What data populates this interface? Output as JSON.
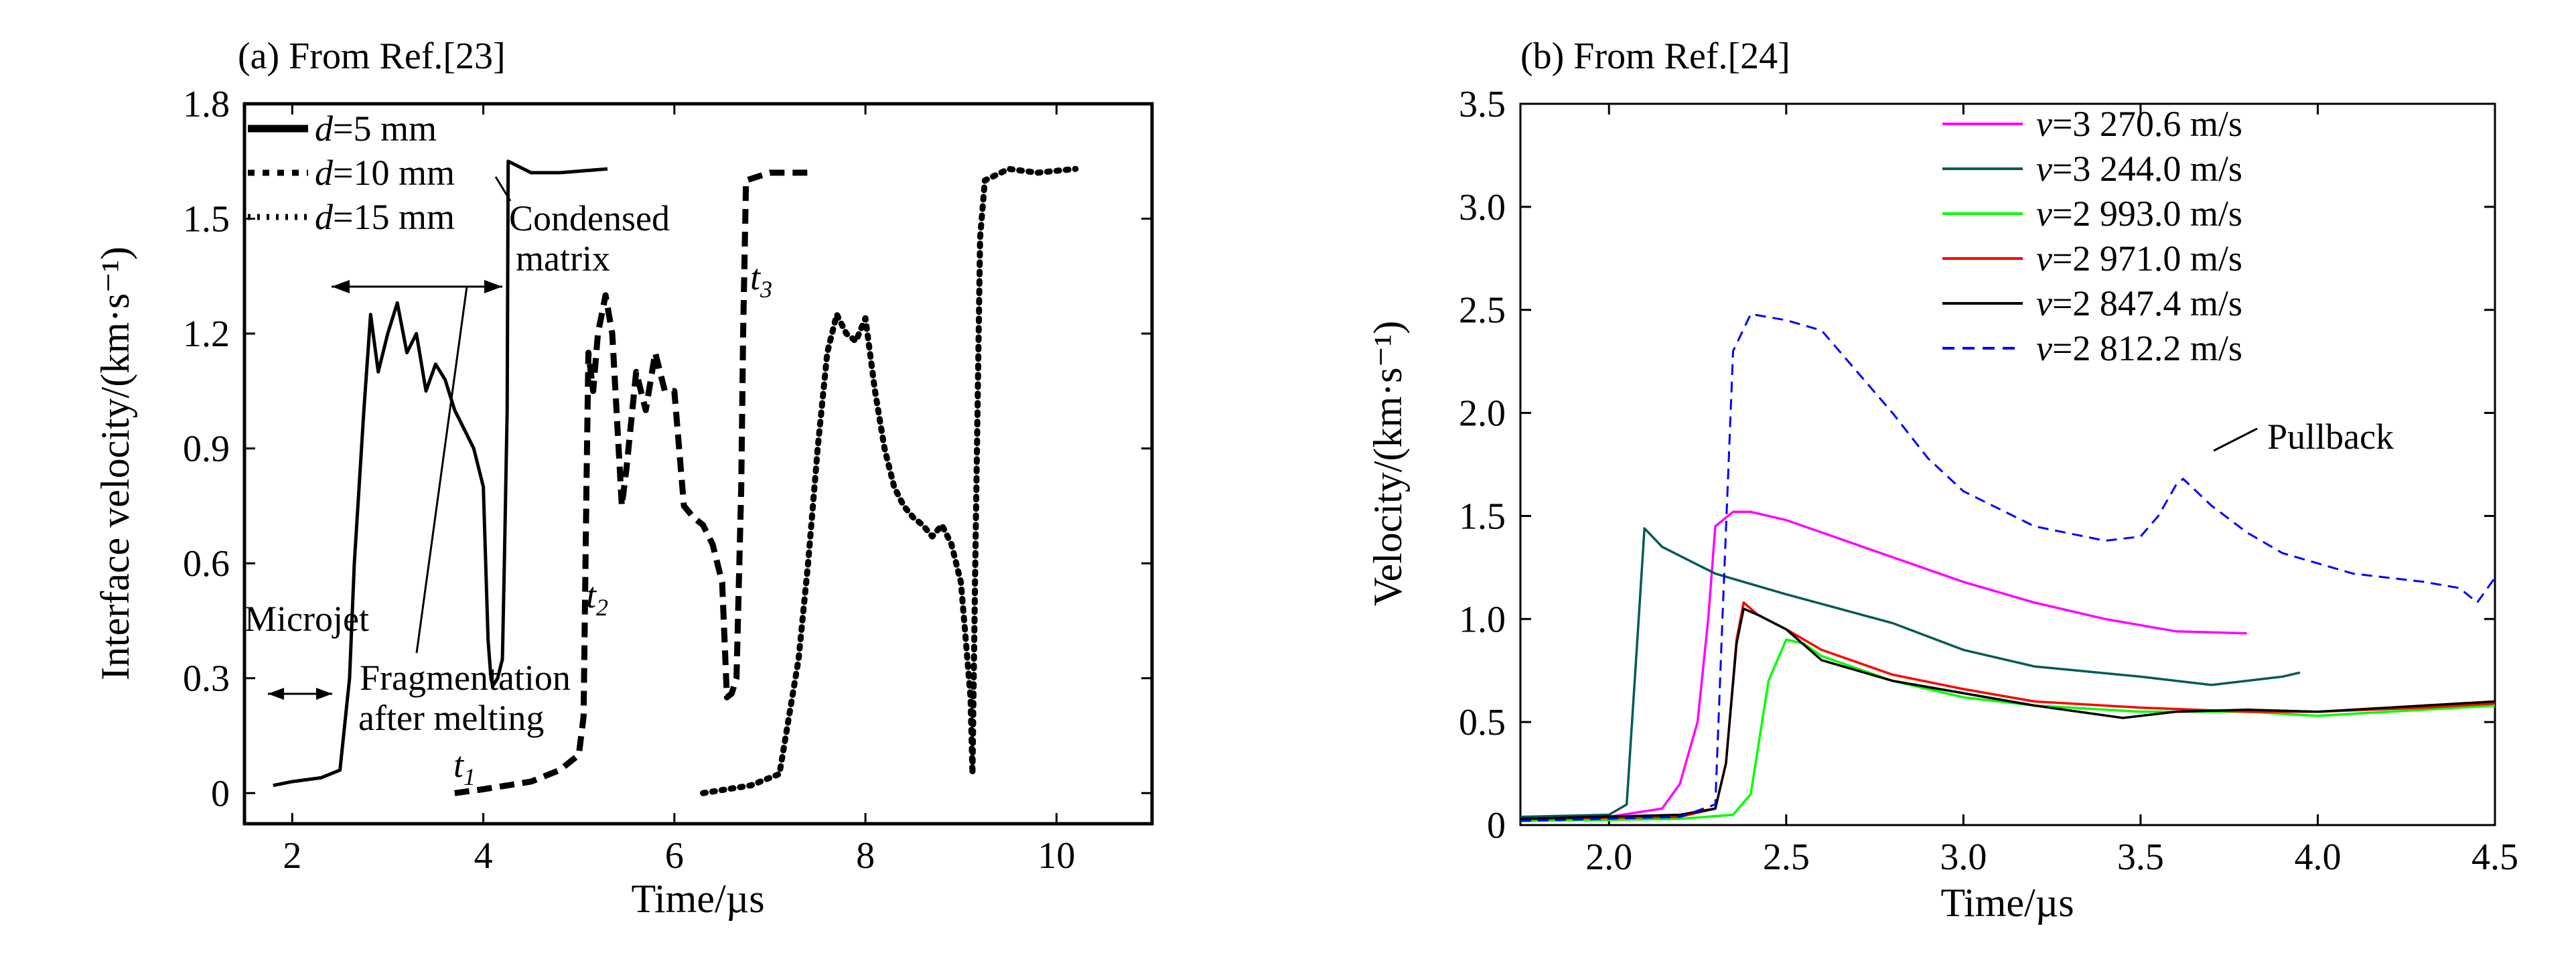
{
  "figure": {
    "panel_a": {
      "title": "(a) From Ref.[23]",
      "xlabel": "Time/µs",
      "ylabel": "Interface velocity/(km·s⁻¹)",
      "annotations": {
        "condensed_line1": "Condensed",
        "condensed_line2": "matrix",
        "microjet": "Microjet",
        "frag_line1": "Fragmentation",
        "frag_line2": "after melting",
        "t1": "t",
        "t1_sub": "1",
        "t2": "t",
        "t2_sub": "2",
        "t3": "t",
        "t3_sub": "3"
      }
    },
    "panel_b": {
      "title": "(b) From Ref.[24]",
      "xlabel": "Time/µs",
      "ylabel": "Velocity/(km·s⁻¹)",
      "annotations": {
        "pullback": "Pullback"
      }
    }
  },
  "chart_data": [
    {
      "type": "line",
      "title": "(a) From Ref.[23]",
      "xlabel": "Time/µs",
      "ylabel": "Interface velocity/(km·s⁻¹)",
      "xlim": [
        1.5,
        11.0
      ],
      "ylim": [
        -0.08,
        1.8
      ],
      "xticks": [
        2,
        4,
        6,
        8,
        10
      ],
      "xtick_labels": [
        "2",
        "4",
        "6",
        "8",
        "10"
      ],
      "yticks": [
        0,
        0.3,
        0.6,
        0.9,
        1.2,
        1.5,
        1.8
      ],
      "ytick_labels": [
        "0",
        "0.3",
        "0.6",
        "0.9",
        "1.2",
        "1.5",
        "1.8"
      ],
      "legend_placement": "top-left",
      "series": [
        {
          "legend_var": "d",
          "legend_rest": "=5 mm",
          "style": "solid",
          "color": "#000000",
          "x": [
            1.8,
            2.0,
            2.3,
            2.5,
            2.6,
            2.65,
            2.75,
            2.82,
            2.9,
            3.0,
            3.1,
            3.2,
            3.3,
            3.4,
            3.5,
            3.6,
            3.7,
            3.8,
            3.9,
            4.0,
            4.05,
            4.08,
            4.1,
            4.15,
            4.2,
            4.22,
            4.25,
            4.26,
            4.5,
            4.8,
            5.3
          ],
          "y": [
            0.02,
            0.03,
            0.04,
            0.06,
            0.3,
            0.6,
            1.0,
            1.25,
            1.1,
            1.2,
            1.28,
            1.15,
            1.2,
            1.05,
            1.12,
            1.08,
            1.0,
            0.95,
            0.9,
            0.8,
            0.4,
            0.3,
            0.28,
            0.3,
            0.35,
            0.6,
            1.0,
            1.65,
            1.62,
            1.62,
            1.63
          ]
        },
        {
          "legend_var": "d",
          "legend_rest": "=10 mm",
          "style": "dashed",
          "color": "#000000",
          "x": [
            3.7,
            4.0,
            4.5,
            4.8,
            5.0,
            5.05,
            5.08,
            5.1,
            5.15,
            5.2,
            5.28,
            5.35,
            5.45,
            5.5,
            5.6,
            5.7,
            5.8,
            5.9,
            6.0,
            6.1,
            6.2,
            6.3,
            6.4,
            6.5,
            6.55,
            6.6,
            6.65,
            6.7,
            6.72,
            6.75,
            7.0,
            7.4
          ],
          "y": [
            0.0,
            0.01,
            0.03,
            0.06,
            0.1,
            0.2,
            0.8,
            1.15,
            1.05,
            1.2,
            1.3,
            1.2,
            0.75,
            0.85,
            1.1,
            1.0,
            1.15,
            1.05,
            1.05,
            0.75,
            0.72,
            0.7,
            0.65,
            0.55,
            0.25,
            0.26,
            0.3,
            0.8,
            1.2,
            1.6,
            1.62,
            1.62
          ]
        },
        {
          "legend_var": "d",
          "legend_rest": "=15 mm",
          "style": "dotted",
          "color": "#000000",
          "x": [
            6.3,
            6.8,
            7.1,
            7.2,
            7.3,
            7.4,
            7.5,
            7.6,
            7.7,
            7.8,
            7.9,
            8.0,
            8.1,
            8.2,
            8.3,
            8.4,
            8.5,
            8.6,
            8.7,
            8.8,
            8.9,
            9.0,
            9.05,
            9.1,
            9.12,
            9.15,
            9.2,
            9.25,
            9.5,
            9.8,
            10.2
          ],
          "y": [
            0.0,
            0.02,
            0.05,
            0.2,
            0.35,
            0.6,
            0.9,
            1.15,
            1.25,
            1.2,
            1.18,
            1.24,
            1.05,
            0.9,
            0.8,
            0.75,
            0.72,
            0.7,
            0.67,
            0.7,
            0.65,
            0.55,
            0.4,
            0.25,
            0.05,
            0.6,
            1.45,
            1.6,
            1.63,
            1.62,
            1.63
          ]
        }
      ]
    },
    {
      "type": "line",
      "title": "(b) From Ref.[24]",
      "xlabel": "Time/µs",
      "ylabel": "Velocity/(km·s⁻¹)",
      "xlim": [
        1.75,
        4.5
      ],
      "ylim": [
        0,
        3.5
      ],
      "xticks": [
        2.0,
        2.5,
        3.0,
        3.5,
        4.0,
        4.5
      ],
      "xtick_labels": [
        "2.0",
        "2.5",
        "3.0",
        "3.5",
        "4.0",
        "4.5"
      ],
      "yticks": [
        0,
        0.5,
        1.0,
        1.5,
        2.0,
        2.5,
        3.0,
        3.5
      ],
      "ytick_labels": [
        "0",
        "0.5",
        "1.0",
        "1.5",
        "2.0",
        "2.5",
        "3.0",
        "3.5"
      ],
      "legend_placement": "top-right",
      "series": [
        {
          "legend_var": "v",
          "legend_rest": "=3 270.6 m/s",
          "color": "#ff00ff",
          "style": "solid",
          "x": [
            1.75,
            2.0,
            2.15,
            2.2,
            2.25,
            2.28,
            2.3,
            2.35,
            2.4,
            2.5,
            2.6,
            2.8,
            3.0,
            3.2,
            3.4,
            3.6,
            3.8
          ],
          "y": [
            0.03,
            0.04,
            0.08,
            0.2,
            0.5,
            1.0,
            1.45,
            1.52,
            1.52,
            1.48,
            1.42,
            1.3,
            1.18,
            1.08,
            1.0,
            0.94,
            0.93
          ]
        },
        {
          "legend_var": "v",
          "legend_rest": "=3 244.0 m/s",
          "color": "#005a5a",
          "style": "solid",
          "x": [
            1.75,
            2.0,
            2.05,
            2.08,
            2.1,
            2.15,
            2.3,
            2.5,
            2.8,
            3.0,
            3.2,
            3.5,
            3.7,
            3.9,
            3.95
          ],
          "y": [
            0.04,
            0.05,
            0.1,
            0.9,
            1.44,
            1.35,
            1.22,
            1.12,
            0.98,
            0.85,
            0.77,
            0.72,
            0.68,
            0.72,
            0.74
          ]
        },
        {
          "legend_var": "v",
          "legend_rest": "=2 993.0 m/s",
          "color": "#00ff00",
          "style": "solid",
          "x": [
            1.75,
            2.2,
            2.35,
            2.4,
            2.45,
            2.5,
            2.55,
            2.6,
            2.8,
            3.0,
            3.2,
            3.5,
            3.8,
            4.0,
            4.3,
            4.5
          ],
          "y": [
            0.02,
            0.03,
            0.05,
            0.15,
            0.7,
            0.9,
            0.88,
            0.82,
            0.7,
            0.62,
            0.58,
            0.55,
            0.55,
            0.53,
            0.56,
            0.58
          ]
        },
        {
          "legend_var": "v",
          "legend_rest": "=2 971.0 m/s",
          "color": "#ff0000",
          "style": "solid",
          "x": [
            1.75,
            2.2,
            2.3,
            2.33,
            2.36,
            2.38,
            2.42,
            2.5,
            2.6,
            2.8,
            3.0,
            3.2,
            3.5,
            3.8,
            4.0,
            4.3,
            4.5
          ],
          "y": [
            0.03,
            0.04,
            0.08,
            0.3,
            0.9,
            1.08,
            1.02,
            0.95,
            0.85,
            0.73,
            0.66,
            0.6,
            0.57,
            0.55,
            0.55,
            0.57,
            0.59
          ]
        },
        {
          "legend_var": "v",
          "legend_rest": "=2 847.4 m/s",
          "color": "#000000",
          "style": "solid",
          "x": [
            1.75,
            2.2,
            2.3,
            2.33,
            2.36,
            2.38,
            2.42,
            2.5,
            2.6,
            2.8,
            3.0,
            3.2,
            3.45,
            3.6,
            3.8,
            4.0,
            4.3,
            4.5
          ],
          "y": [
            0.03,
            0.05,
            0.08,
            0.3,
            0.88,
            1.05,
            1.02,
            0.95,
            0.8,
            0.7,
            0.64,
            0.58,
            0.52,
            0.55,
            0.56,
            0.55,
            0.58,
            0.6
          ]
        },
        {
          "legend_var": "v",
          "legend_rest": "=2 812.2 m/s",
          "color": "#0000ff",
          "style": "dashed",
          "x": [
            1.75,
            2.2,
            2.3,
            2.32,
            2.35,
            2.4,
            2.5,
            2.6,
            2.7,
            2.8,
            2.9,
            3.0,
            3.2,
            3.4,
            3.5,
            3.55,
            3.6,
            3.62,
            3.7,
            3.8,
            3.9,
            4.0,
            4.1,
            4.2,
            4.3,
            4.4,
            4.45,
            4.5
          ],
          "y": [
            0.02,
            0.04,
            0.1,
            1.0,
            2.3,
            2.48,
            2.45,
            2.4,
            2.2,
            2.0,
            1.78,
            1.62,
            1.45,
            1.38,
            1.4,
            1.5,
            1.65,
            1.68,
            1.55,
            1.42,
            1.32,
            1.27,
            1.22,
            1.2,
            1.18,
            1.15,
            1.08,
            1.2
          ]
        }
      ]
    }
  ]
}
